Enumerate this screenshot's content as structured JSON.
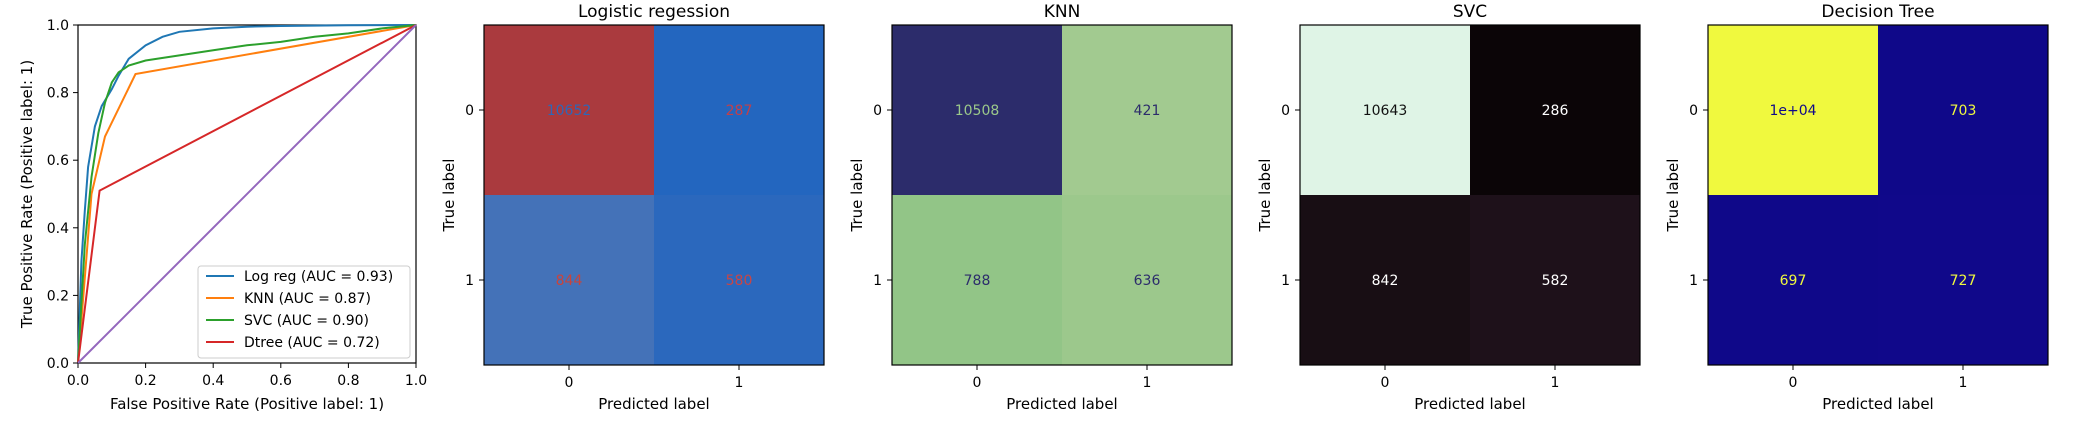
{
  "chart_data": [
    {
      "type": "line",
      "title": "",
      "xlabel": "False Positive Rate (Positive label: 1)",
      "ylabel": "True Positive Rate (Positive label: 1)",
      "xlim": [
        0.0,
        1.0
      ],
      "ylim": [
        0.0,
        1.0
      ],
      "xticks": [
        "0.0",
        "0.2",
        "0.4",
        "0.6",
        "0.8",
        "1.0"
      ],
      "yticks": [
        "0.0",
        "0.2",
        "0.4",
        "0.6",
        "0.8",
        "1.0"
      ],
      "grid": false,
      "legend_position": "lower-right",
      "series": [
        {
          "name": "Log reg (AUC = 0.93)",
          "color": "#1f77b4",
          "x": [
            0,
            0.01,
            0.02,
            0.03,
            0.05,
            0.07,
            0.1,
            0.12,
            0.15,
            0.2,
            0.25,
            0.3,
            0.4,
            0.5,
            0.6,
            0.8,
            1.0
          ],
          "y": [
            0,
            0.3,
            0.45,
            0.58,
            0.7,
            0.76,
            0.81,
            0.85,
            0.9,
            0.94,
            0.965,
            0.98,
            0.99,
            0.995,
            0.997,
            0.999,
            1.0
          ]
        },
        {
          "name": "KNN (AUC = 0.87)",
          "color": "#ff7f0e",
          "x": [
            0,
            0.04,
            0.08,
            0.17,
            1.0
          ],
          "y": [
            0,
            0.5,
            0.67,
            0.855,
            1.0
          ]
        },
        {
          "name": "SVC (AUC = 0.90)",
          "color": "#2ca02c",
          "x": [
            0,
            0.02,
            0.04,
            0.06,
            0.08,
            0.1,
            0.12,
            0.15,
            0.2,
            0.3,
            0.4,
            0.5,
            0.6,
            0.7,
            0.8,
            0.9,
            1.0
          ],
          "y": [
            0,
            0.35,
            0.55,
            0.68,
            0.77,
            0.83,
            0.86,
            0.88,
            0.895,
            0.91,
            0.925,
            0.94,
            0.95,
            0.965,
            0.975,
            0.99,
            1.0
          ]
        },
        {
          "name": "Dtree (AUC = 0.72)",
          "color": "#d62728",
          "x": [
            0,
            0.064,
            1.0
          ],
          "y": [
            0,
            0.51,
            1.0
          ]
        },
        {
          "name": "",
          "color": "#9467bd",
          "x": [
            0,
            1.0
          ],
          "y": [
            0,
            1.0
          ]
        }
      ]
    },
    {
      "type": "heatmap",
      "title": "Logistic regession",
      "xlabel": "Predicted label",
      "ylabel": "True label",
      "x_categories": [
        "0",
        "1"
      ],
      "y_categories": [
        "0",
        "1"
      ],
      "values": [
        [
          "10652",
          "287"
        ],
        [
          "844",
          "580"
        ]
      ],
      "cell_colors": [
        [
          "#aa3a3e",
          "#2366bf"
        ],
        [
          "#4472b8",
          "#2b68bd"
        ]
      ],
      "text_colors": [
        [
          "#2f66b6",
          "#c2404a"
        ],
        [
          "#c8443c",
          "#c84646"
        ]
      ]
    },
    {
      "type": "heatmap",
      "title": "KNN",
      "xlabel": "Predicted label",
      "ylabel": "True label",
      "x_categories": [
        "0",
        "1"
      ],
      "y_categories": [
        "0",
        "1"
      ],
      "values": [
        [
          "10508",
          "421"
        ],
        [
          "788",
          "636"
        ]
      ],
      "cell_colors": [
        [
          "#2c2c6b",
          "#a2ca90"
        ],
        [
          "#92c587",
          "#9cc88c"
        ]
      ],
      "text_colors": [
        [
          "#9bc88a",
          "#2c2c6b"
        ],
        [
          "#2c2c6b",
          "#2c2c6b"
        ]
      ]
    },
    {
      "type": "heatmap",
      "title": "SVC",
      "xlabel": "Predicted label",
      "ylabel": "True label",
      "x_categories": [
        "0",
        "1"
      ],
      "y_categories": [
        "0",
        "1"
      ],
      "values": [
        [
          "10643",
          "286"
        ],
        [
          "842",
          "582"
        ]
      ],
      "cell_colors": [
        [
          "#dff4e6",
          "#0b0507"
        ],
        [
          "#180e14",
          "#1e111a"
        ]
      ],
      "text_colors": [
        [
          "#111111",
          "#ffffff"
        ],
        [
          "#ffffff",
          "#ffffff"
        ]
      ]
    },
    {
      "type": "heatmap",
      "title": "Decision Tree",
      "xlabel": "Predicted label",
      "ylabel": "True label",
      "x_categories": [
        "0",
        "1"
      ],
      "y_categories": [
        "0",
        "1"
      ],
      "values": [
        [
          "1e+04",
          "703"
        ],
        [
          "697",
          "727"
        ]
      ],
      "cell_colors": [
        [
          "#f0f93e",
          "#0f0889"
        ],
        [
          "#0f0889",
          "#10088a"
        ]
      ],
      "text_colors": [
        [
          "#0f0889",
          "#f0f93e"
        ],
        [
          "#f0f93e",
          "#f0f93e"
        ]
      ]
    }
  ]
}
